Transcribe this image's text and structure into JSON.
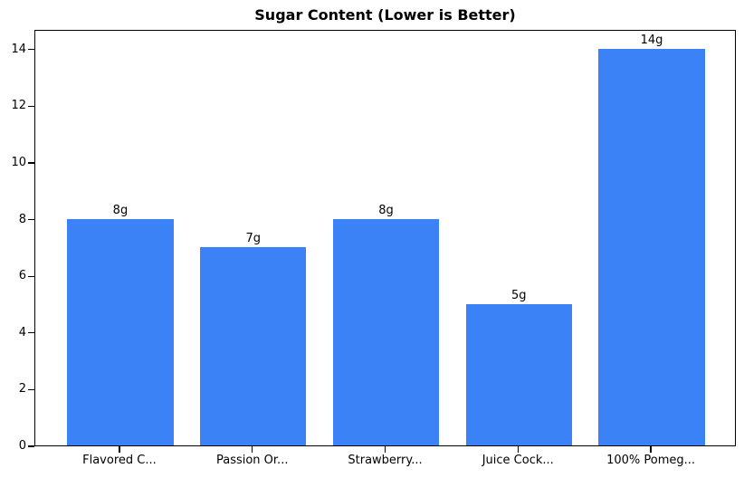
{
  "chart_data": {
    "type": "bar",
    "title": "Sugar Content (Lower is Better)",
    "categories": [
      "Flavored C...",
      "Passion Or...",
      "Strawberry...",
      "Juice Cock...",
      "100% Pomeg..."
    ],
    "values": [
      8,
      7,
      8,
      5,
      14
    ],
    "bar_labels": [
      "8g",
      "7g",
      "8g",
      "5g",
      "14g"
    ],
    "yticks": [
      "0",
      "2",
      "4",
      "6",
      "8",
      "10",
      "12",
      "14"
    ],
    "ytick_values": [
      0,
      2,
      4,
      6,
      8,
      10,
      12,
      14
    ],
    "ylim": [
      0,
      14.7
    ],
    "xlabel": "",
    "ylabel": "",
    "grid": false,
    "legend": "none",
    "bar_color": "#3b82f6",
    "axis_color": "#000000",
    "text_color": "#000000",
    "background_color": "#ffffff"
  }
}
